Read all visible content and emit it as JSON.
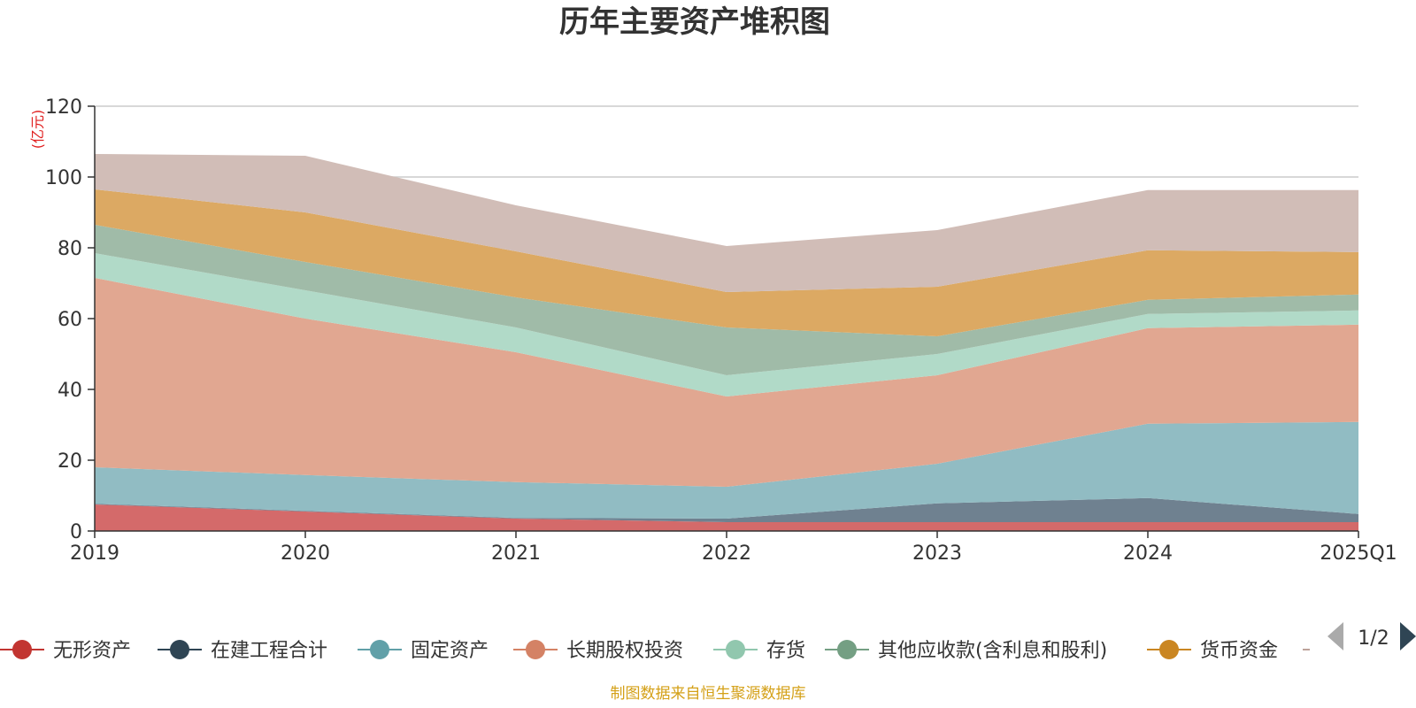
{
  "chart_data": {
    "type": "area",
    "stacked": true,
    "title": "历年主要资产堆积图",
    "unit_label": "(亿元)",
    "x": [
      "2019",
      "2020",
      "2021",
      "2022",
      "2023",
      "2024",
      "2025Q1"
    ],
    "ylim": [
      0,
      120
    ],
    "yticks": [
      0,
      20,
      40,
      60,
      80,
      100,
      120
    ],
    "grid": true,
    "series": [
      {
        "name": "无形资产",
        "color": "#d46a6a",
        "marker": "#c23531",
        "values": [
          7.5,
          5.5,
          3.5,
          2.5,
          2.5,
          2.5,
          2.5
        ]
      },
      {
        "name": "在建工程合计",
        "color": "#6f8190",
        "marker": "#2f4554",
        "values": [
          0.2,
          0.2,
          0.2,
          1.0,
          5.3,
          6.8,
          2.3
        ]
      },
      {
        "name": "固定资产",
        "color": "#91bcc3",
        "marker": "#61a0a8",
        "values": [
          10.3,
          10.1,
          10.1,
          9.0,
          11.2,
          21.0,
          26.0
        ]
      },
      {
        "name": "长期股权投资",
        "color": "#e1a791",
        "marker": "#d48265",
        "values": [
          53.5,
          44.2,
          36.7,
          25.5,
          25.0,
          27.0,
          27.5
        ]
      },
      {
        "name": "存货",
        "color": "#b1dac8",
        "marker": "#91c7ae",
        "values": [
          7.0,
          8.0,
          7.0,
          6.0,
          6.0,
          4.0,
          4.0
        ]
      },
      {
        "name": "其他应收款(含利息和股利)",
        "color": "#a0bba8",
        "marker": "#749f83",
        "values": [
          8.0,
          8.0,
          8.5,
          13.5,
          5.0,
          4.0,
          4.5
        ]
      },
      {
        "name": "货币资金",
        "color": "#dca963",
        "marker": "#ca8622",
        "values": [
          10.0,
          14.0,
          13.0,
          10.0,
          14.0,
          14.0,
          12.0
        ]
      },
      {
        "name": "",
        "color": "#d1bdb7",
        "marker": "#bda29a",
        "values": [
          10.0,
          16.0,
          13.0,
          13.0,
          16.0,
          17.0,
          17.5
        ]
      }
    ]
  },
  "legend": {
    "page": "1/2"
  },
  "source_note": "制图数据来自恒生聚源数据库"
}
